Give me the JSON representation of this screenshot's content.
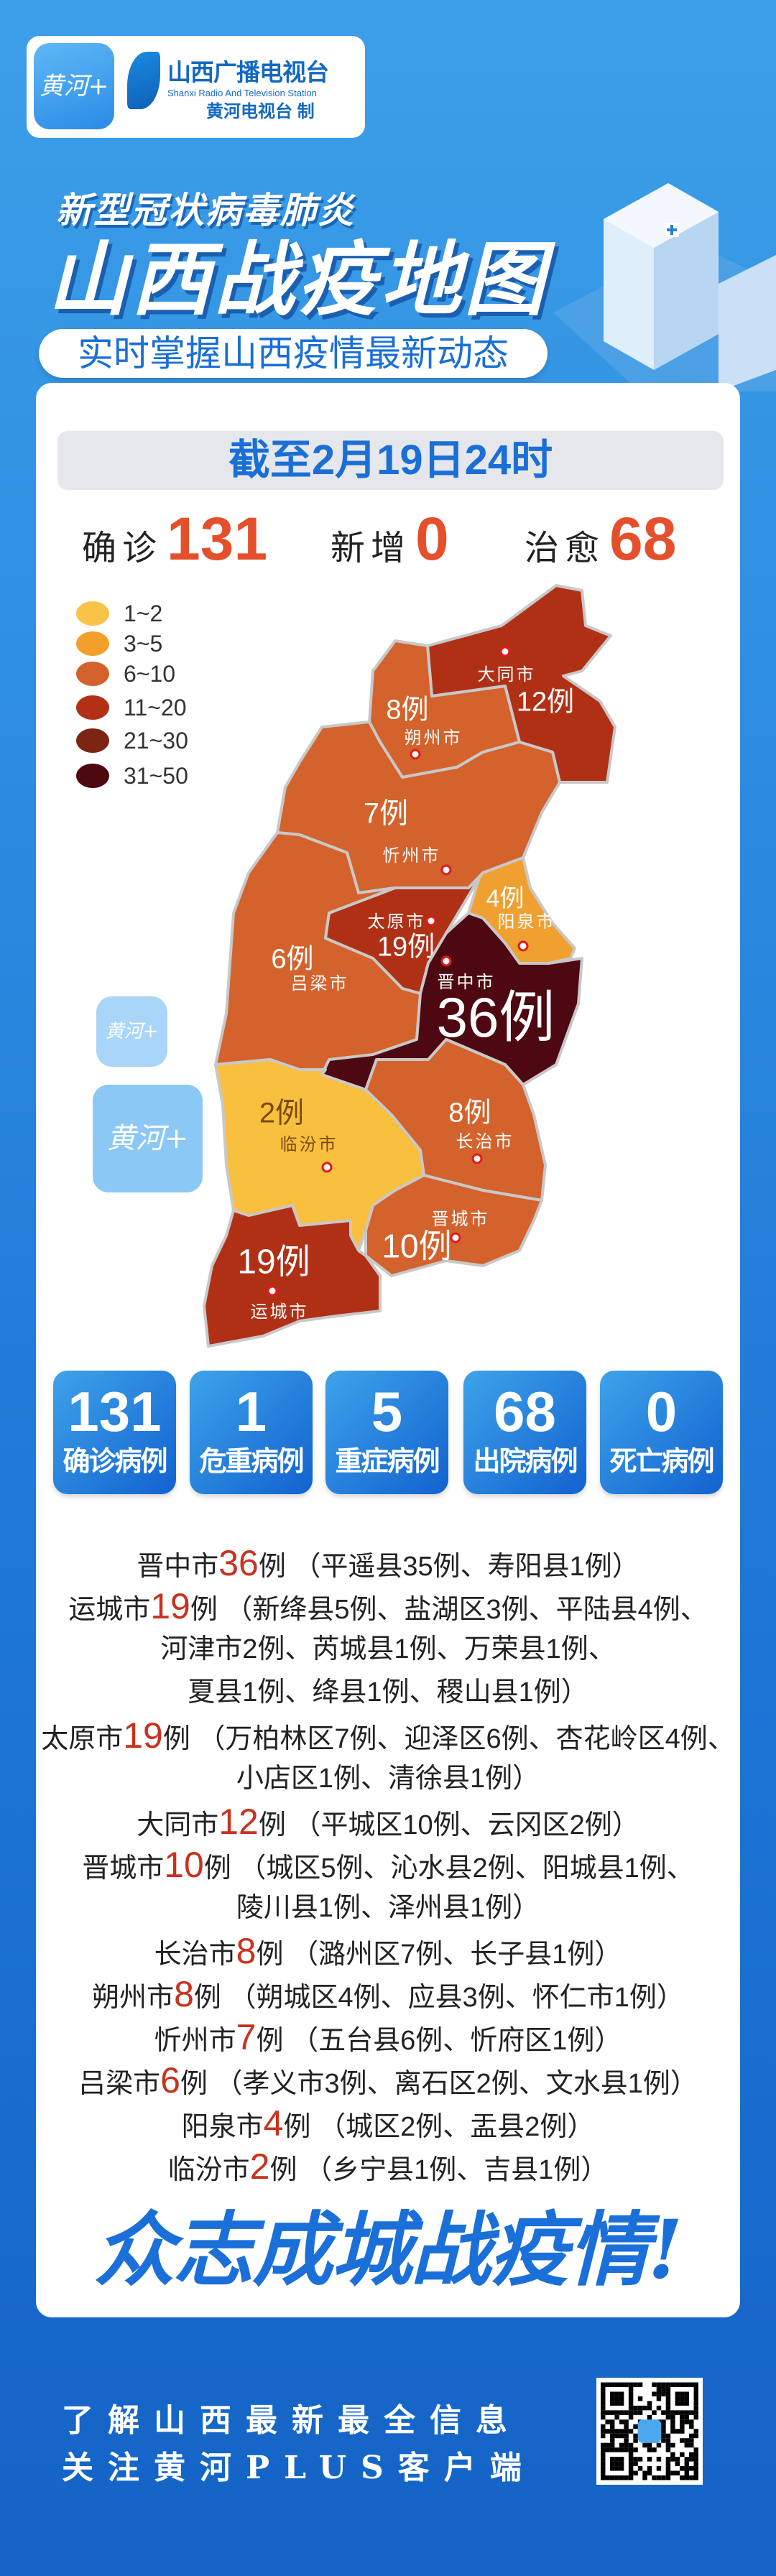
{
  "header": {
    "app_logo_text": "黄河+",
    "station_cn": "山西广播电视台",
    "station_en": "Shanxi Radio And Television Station",
    "maker": "黄河电视台 制"
  },
  "title": {
    "line1": "新型冠状病毒肺炎",
    "line2": "山西战疫地图",
    "subtitle": "实时掌握山西疫情最新动态"
  },
  "date": "截至2月19日24时",
  "summary": [
    {
      "label": "确诊",
      "value": "131"
    },
    {
      "label": "新增",
      "value": "0"
    },
    {
      "label": "治愈",
      "value": "68"
    }
  ],
  "legend": [
    {
      "label": "1~2",
      "color": "#f9c347"
    },
    {
      "label": "3~5",
      "color": "#f2a02a"
    },
    {
      "label": "6~10",
      "color": "#d4622c"
    },
    {
      "label": "11~20",
      "color": "#b23116"
    },
    {
      "label": "21~30",
      "color": "#7b2512"
    },
    {
      "label": "31~50",
      "color": "#4c0a10"
    }
  ],
  "map": {
    "cities": [
      {
        "name": "大同市",
        "count": "12例",
        "color": "#b03016"
      },
      {
        "name": "朔州市",
        "count": "8例",
        "color": "#d4622c"
      },
      {
        "name": "忻州市",
        "count": "7例",
        "color": "#d4622c"
      },
      {
        "name": "吕梁市",
        "count": "6例",
        "color": "#d4622c"
      },
      {
        "name": "太原市",
        "count": "19例",
        "color": "#b03016"
      },
      {
        "name": "阳泉市",
        "count": "4例",
        "color": "#f0a030"
      },
      {
        "name": "晋中市",
        "count": "36例",
        "color": "#4d0812"
      },
      {
        "name": "临汾市",
        "count": "2例",
        "color": "#f9c03f"
      },
      {
        "name": "长治市",
        "count": "8例",
        "color": "#d4622c"
      },
      {
        "name": "晋城市",
        "count": "10例",
        "color": "#d4622c"
      },
      {
        "name": "运城市",
        "count": "19例",
        "color": "#b03016"
      }
    ]
  },
  "tiles": [
    {
      "value": "131",
      "label": "确诊病例"
    },
    {
      "value": "1",
      "label": "危重病例"
    },
    {
      "value": "5",
      "label": "重症病例"
    },
    {
      "value": "68",
      "label": "出院病例"
    },
    {
      "value": "0",
      "label": "死亡病例"
    }
  ],
  "districts": [
    {
      "city": "晋中市",
      "count": "36",
      "unit": "例",
      "lines": [
        "（平遥县35例、寿阳县1例）"
      ]
    },
    {
      "city": "运城市",
      "count": "19",
      "unit": "例",
      "lines": [
        "（新绛县5例、盐湖区3例、平陆县4例、",
        "河津市2例、芮城县1例、万荣县1例、",
        "夏县1例、绛县1例、稷山县1例）"
      ]
    },
    {
      "city": "太原市",
      "count": "19",
      "unit": "例",
      "lines": [
        "（万柏林区7例、迎泽区6例、杏花岭区4例、",
        "小店区1例、清徐县1例）"
      ]
    },
    {
      "city": "大同市",
      "count": "12",
      "unit": "例",
      "lines": [
        "（平城区10例、云冈区2例）"
      ]
    },
    {
      "city": "晋城市",
      "count": "10",
      "unit": "例",
      "lines": [
        "（城区5例、沁水县2例、阳城县1例、",
        "陵川县1例、泽州县1例）"
      ]
    },
    {
      "city": "长治市",
      "count": "8",
      "unit": "例",
      "lines": [
        "（潞州区7例、长子县1例）"
      ]
    },
    {
      "city": "朔州市",
      "count": "8",
      "unit": "例",
      "lines": [
        "（朔城区4例、应县3例、怀仁市1例）"
      ]
    },
    {
      "city": "忻州市",
      "count": "7",
      "unit": "例",
      "lines": [
        "（五台县6例、忻府区1例）"
      ]
    },
    {
      "city": "吕梁市",
      "count": "6",
      "unit": "例",
      "lines": [
        "（孝义市3例、离石区2例、文水县1例）"
      ]
    },
    {
      "city": "阳泉市",
      "count": "4",
      "unit": "例",
      "lines": [
        "（城区2例、盂县2例）"
      ]
    },
    {
      "city": "临汾市",
      "count": "2",
      "unit": "例",
      "lines": [
        "（乡宁县1例、吉县1例）"
      ]
    }
  ],
  "slogan": "众志成城战疫情!",
  "footer": {
    "line1": "了解山西最新最全信息",
    "line2": "关注黄河PLUS客户端",
    "qr_icon": "qr-code-icon"
  },
  "colors": {
    "accent": "#1a6fd6",
    "number_red": "#e4502b"
  }
}
